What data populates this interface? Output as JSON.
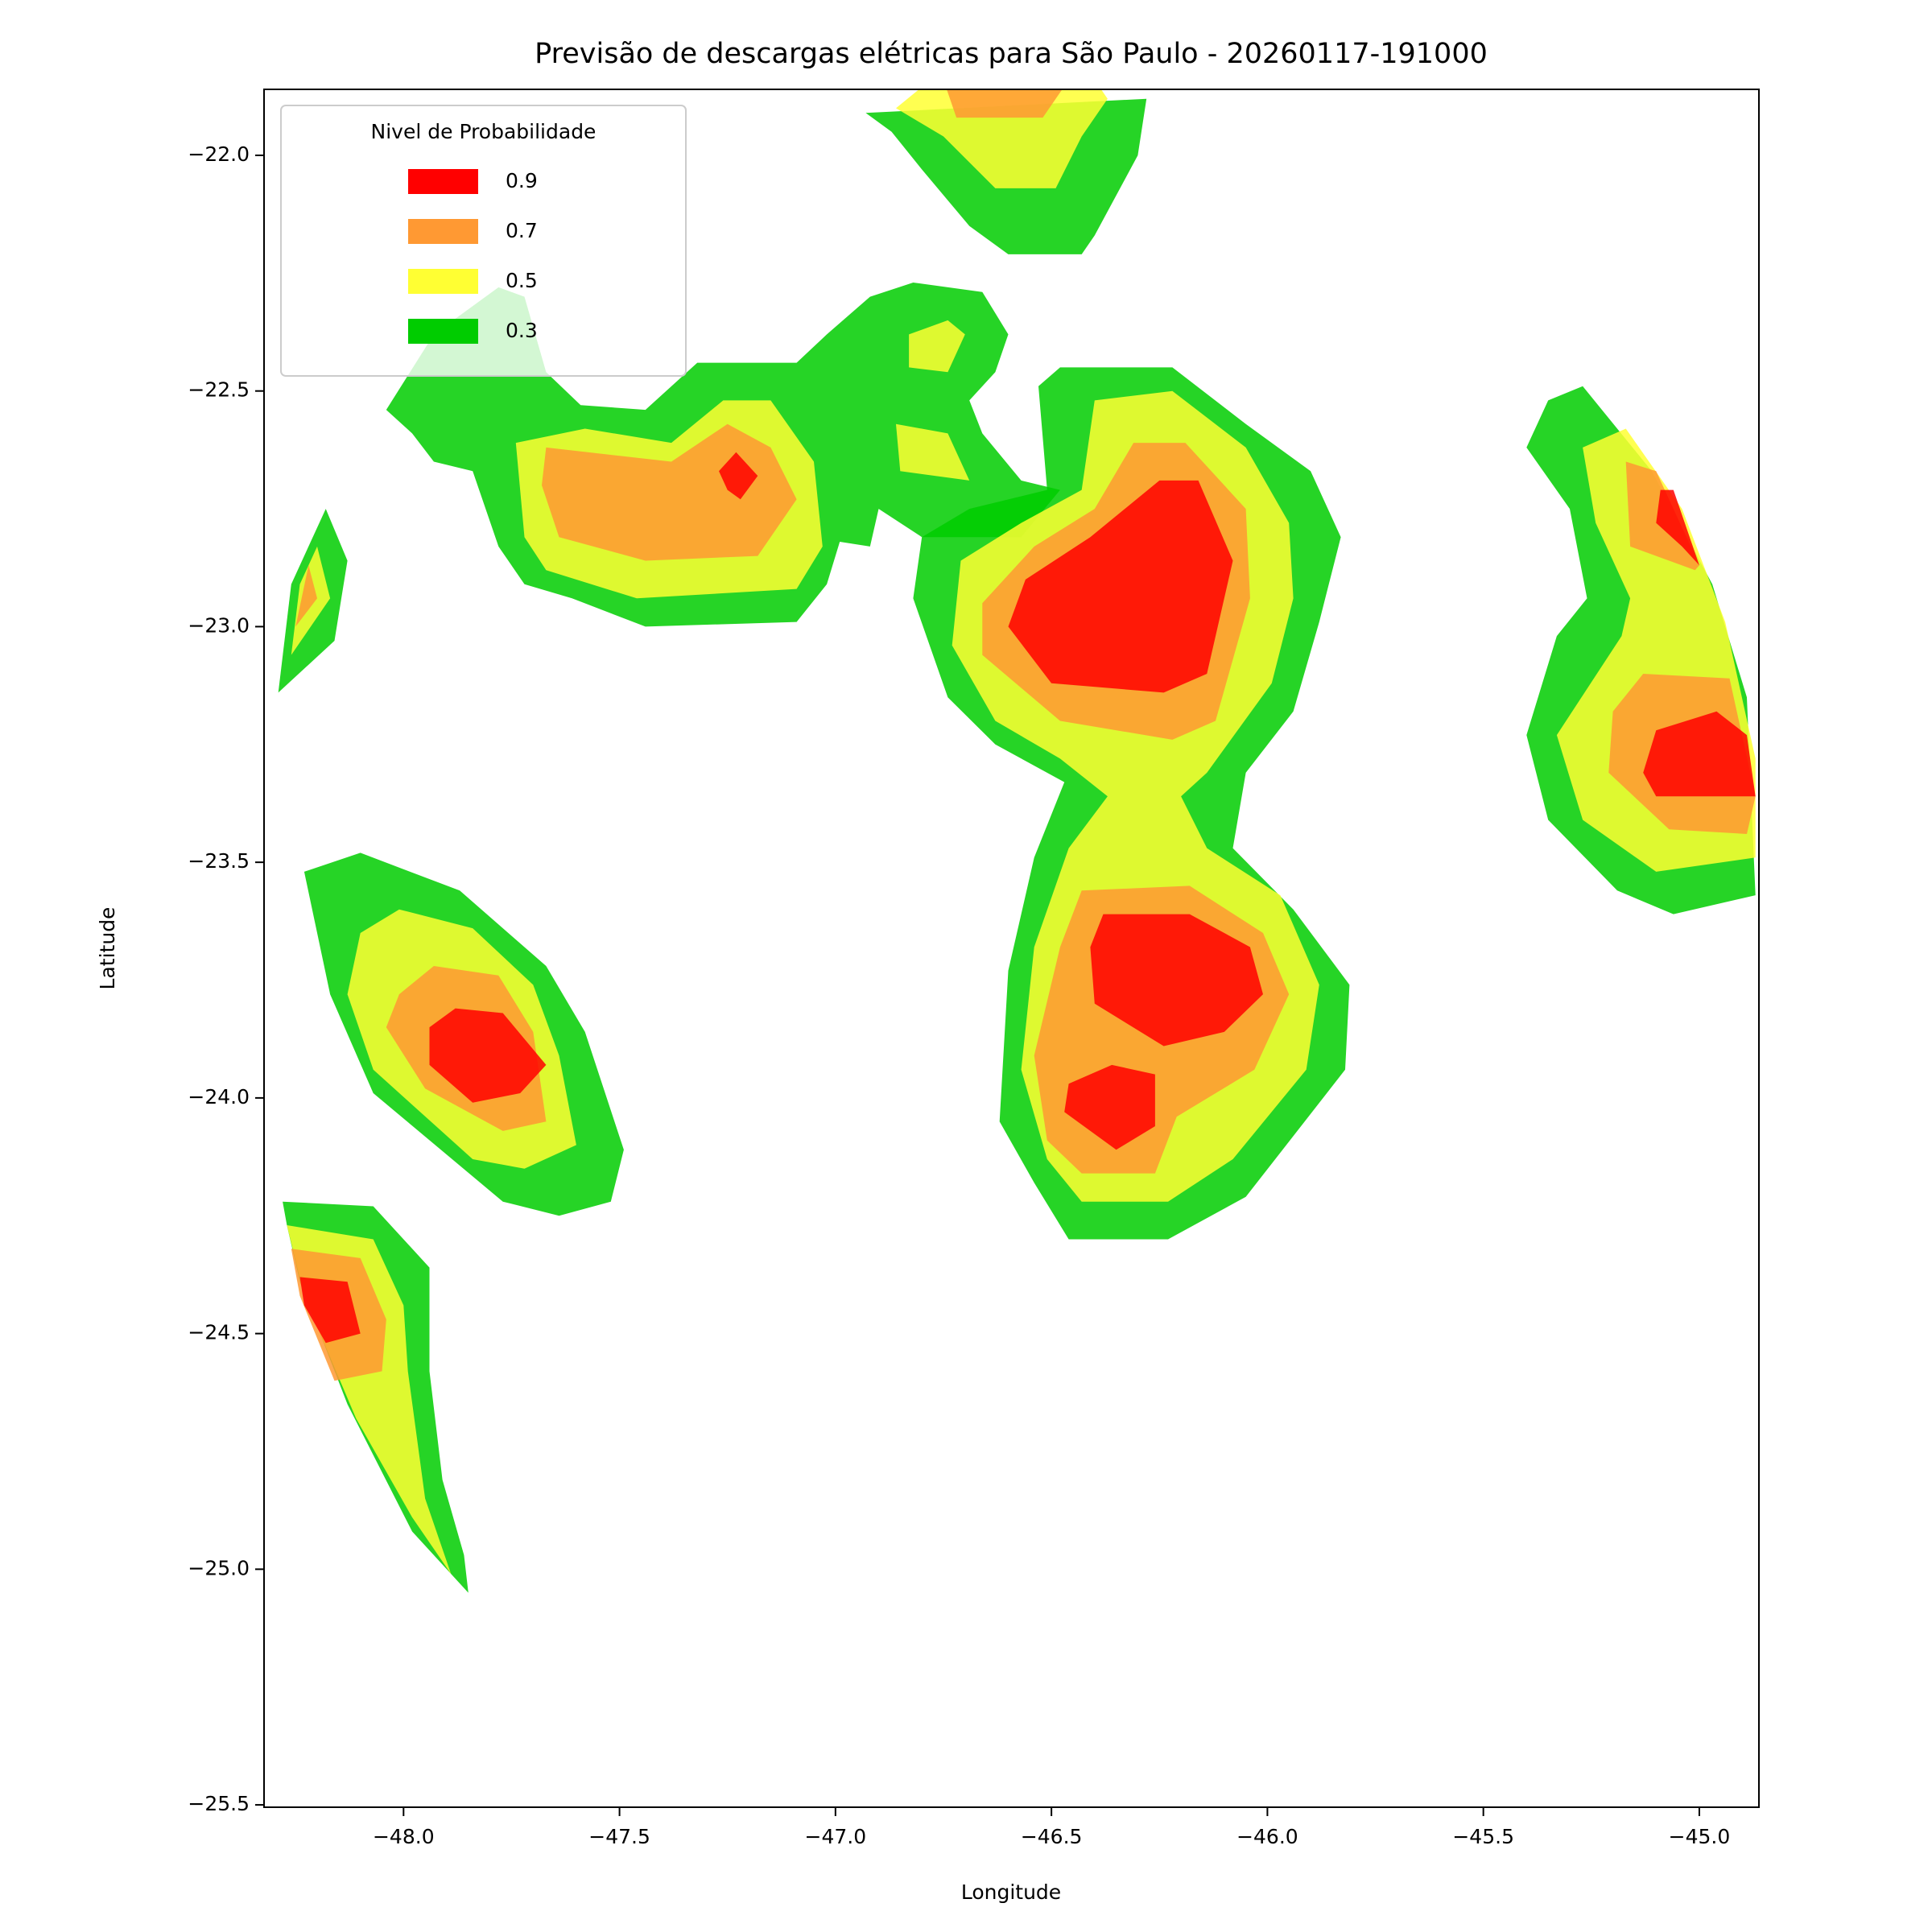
{
  "chart_data": {
    "type": "contourf",
    "title": "Previsão de descargas elétricas para São Paulo - 20260117-191000",
    "x_label": "Longitude",
    "y_label": "Latitude",
    "xlim": [
      -48.323,
      -44.862
    ],
    "ylim": [
      -25.505,
      -21.86
    ],
    "xticks": [
      {
        "value": -48.0,
        "label": "−48.0"
      },
      {
        "value": -47.5,
        "label": "−47.5"
      },
      {
        "value": -47.0,
        "label": "−47.0"
      },
      {
        "value": -46.5,
        "label": "−46.5"
      },
      {
        "value": -46.0,
        "label": "−46.0"
      },
      {
        "value": -45.5,
        "label": "−45.5"
      },
      {
        "value": -45.0,
        "label": "−45.0"
      }
    ],
    "yticks": [
      {
        "value": -22.0,
        "label": "−22.0"
      },
      {
        "value": -22.5,
        "label": "−22.5"
      },
      {
        "value": -23.0,
        "label": "−23.0"
      },
      {
        "value": -23.5,
        "label": "−23.5"
      },
      {
        "value": -24.0,
        "label": "−24.0"
      },
      {
        "value": -24.5,
        "label": "−24.5"
      },
      {
        "value": -25.0,
        "label": "−25.0"
      },
      {
        "value": -25.5,
        "label": "−25.5"
      }
    ],
    "alpha": 0.85,
    "legend": {
      "title": "Nivel de Probabilidade",
      "loc": "upper left"
    },
    "series": [
      {
        "name": "0.9",
        "color": "#ff0000",
        "polygons": [
          {
            "lon": [
              -47.27,
              -47.23,
              -47.18,
              -47.22,
              -47.25
            ],
            "lat": [
              -22.67,
              -22.63,
              -22.68,
              -22.73,
              -22.71
            ]
          },
          {
            "lon": [
              -46.25,
              -46.16,
              -46.08,
              -46.14,
              -46.24,
              -46.5,
              -46.6,
              -46.56,
              -46.41
            ],
            "lat": [
              -22.69,
              -22.69,
              -22.86,
              -23.1,
              -23.14,
              -23.12,
              -23.0,
              -22.9,
              -22.81
            ]
          },
          {
            "lon": [
              -46.38,
              -46.18,
              -46.04,
              -46.01,
              -46.1,
              -46.24,
              -46.4,
              -46.41
            ],
            "lat": [
              -23.61,
              -23.61,
              -23.68,
              -23.78,
              -23.86,
              -23.89,
              -23.8,
              -23.68
            ]
          },
          {
            "lon": [
              -46.36,
              -46.26,
              -46.26,
              -46.35,
              -46.47,
              -46.46
            ],
            "lat": [
              -23.93,
              -23.95,
              -24.06,
              -24.11,
              -24.03,
              -23.97
            ]
          },
          {
            "lon": [
              -47.94,
              -47.88,
              -47.77,
              -47.67,
              -47.73,
              -47.84,
              -47.94
            ],
            "lat": [
              -23.85,
              -23.81,
              -23.82,
              -23.93,
              -23.99,
              -24.01,
              -23.93
            ]
          },
          {
            "lon": [
              -48.24,
              -48.13,
              -48.1,
              -48.18,
              -48.23
            ],
            "lat": [
              -24.38,
              -24.39,
              -24.5,
              -24.52,
              -24.44
            ]
          },
          {
            "lon": [
              -45.09,
              -45.06,
              -45.0,
              -45.04,
              -45.1
            ],
            "lat": [
              -22.71,
              -22.71,
              -22.87,
              -22.83,
              -22.78
            ]
          },
          {
            "lon": [
              -45.1,
              -44.96,
              -44.89,
              -44.87,
              -45.1,
              -45.13
            ],
            "lat": [
              -23.22,
              -23.18,
              -23.23,
              -23.36,
              -23.36,
              -23.31
            ]
          }
        ]
      },
      {
        "name": "0.7",
        "color": "#ff9933",
        "polygons": [
          {
            "lon": [
              -46.75,
              -46.46,
              -46.52,
              -46.72
            ],
            "lat": [
              -21.84,
              -21.84,
              -21.92,
              -21.92
            ]
          },
          {
            "lon": [
              -47.67,
              -47.38,
              -47.25,
              -47.15,
              -47.09,
              -47.18,
              -47.44,
              -47.64,
              -47.68
            ],
            "lat": [
              -22.62,
              -22.65,
              -22.57,
              -22.62,
              -22.73,
              -22.85,
              -22.86,
              -22.81,
              -22.7
            ]
          },
          {
            "lon": [
              -46.31,
              -46.19,
              -46.05,
              -46.04,
              -46.12,
              -46.22,
              -46.48,
              -46.66,
              -46.66,
              -46.54,
              -46.4
            ],
            "lat": [
              -22.61,
              -22.61,
              -22.75,
              -22.94,
              -23.2,
              -23.24,
              -23.2,
              -23.06,
              -22.95,
              -22.83,
              -22.75
            ]
          },
          {
            "lon": [
              -46.43,
              -46.18,
              -46.01,
              -45.95,
              -46.03,
              -46.21,
              -46.26,
              -46.43,
              -46.51,
              -46.54,
              -46.48
            ],
            "lat": [
              -23.56,
              -23.55,
              -23.65,
              -23.78,
              -23.94,
              -24.04,
              -24.16,
              -24.16,
              -24.09,
              -23.91,
              -23.68
            ]
          },
          {
            "lon": [
              -48.01,
              -47.93,
              -47.78,
              -47.7,
              -47.67,
              -47.77,
              -47.95,
              -48.04
            ],
            "lat": [
              -23.78,
              -23.72,
              -23.74,
              -23.86,
              -24.05,
              -24.07,
              -23.98,
              -23.85
            ]
          },
          {
            "lon": [
              -48.22,
              -48.2,
              -48.25
            ],
            "lat": [
              -22.87,
              -22.94,
              -23.0
            ]
          },
          {
            "lon": [
              -48.26,
              -48.1,
              -48.04,
              -48.05,
              -48.16,
              -48.24
            ],
            "lat": [
              -24.32,
              -24.34,
              -24.47,
              -24.58,
              -24.6,
              -24.42
            ]
          },
          {
            "lon": [
              -45.17,
              -45.1,
              -45.0,
              -45.01,
              -45.16
            ],
            "lat": [
              -22.65,
              -22.67,
              -22.87,
              -22.88,
              -22.83
            ]
          },
          {
            "lon": [
              -45.13,
              -44.93,
              -44.87,
              -44.89,
              -45.07,
              -45.21,
              -45.2
            ],
            "lat": [
              -23.1,
              -23.11,
              -23.36,
              -23.44,
              -23.43,
              -23.31,
              -23.18
            ]
          }
        ]
      },
      {
        "name": "0.5",
        "color": "#ffff33",
        "polygons": [
          {
            "lon": [
              -46.86,
              -46.78,
              -46.4,
              -46.37,
              -46.43,
              -46.49,
              -46.63,
              -46.75
            ],
            "lat": [
              -21.9,
              -21.84,
              -21.84,
              -21.88,
              -21.96,
              -22.07,
              -22.07,
              -21.96
            ]
          },
          {
            "lon": [
              -47.74,
              -47.58,
              -47.38,
              -47.26,
              -47.15,
              -47.05,
              -47.03,
              -47.09,
              -47.46,
              -47.67,
              -47.72
            ],
            "lat": [
              -22.61,
              -22.58,
              -22.61,
              -22.52,
              -22.52,
              -22.65,
              -22.83,
              -22.92,
              -22.94,
              -22.88,
              -22.81
            ]
          },
          {
            "lon": [
              -46.83,
              -46.74,
              -46.7,
              -46.74,
              -46.83
            ],
            "lat": [
              -22.38,
              -22.35,
              -22.38,
              -22.46,
              -22.45
            ]
          },
          {
            "lon": [
              -46.86,
              -46.74,
              -46.69,
              -46.85
            ],
            "lat": [
              -22.57,
              -22.59,
              -22.69,
              -22.67
            ]
          },
          {
            "lon": [
              -46.4,
              -46.22,
              -46.05,
              -45.95,
              -45.94,
              -45.99,
              -46.14,
              -46.2,
              -46.14,
              -45.97,
              -45.88,
              -45.91,
              -46.08,
              -46.23,
              -46.43,
              -46.51,
              -46.57,
              -46.54,
              -46.46,
              -46.37,
              -46.48,
              -46.63,
              -46.73,
              -46.71,
              -46.57,
              -46.43
            ],
            "lat": [
              -22.52,
              -22.5,
              -22.62,
              -22.78,
              -22.94,
              -23.12,
              -23.31,
              -23.36,
              -23.47,
              -23.57,
              -23.76,
              -23.94,
              -24.13,
              -24.22,
              -24.22,
              -24.13,
              -23.94,
              -23.68,
              -23.47,
              -23.36,
              -23.28,
              -23.2,
              -23.04,
              -22.86,
              -22.78,
              -22.71
            ]
          },
          {
            "lon": [
              -48.1,
              -48.01,
              -47.84,
              -47.7,
              -47.64,
              -47.6,
              -47.72,
              -47.84,
              -48.07,
              -48.13
            ],
            "lat": [
              -23.65,
              -23.6,
              -23.64,
              -23.76,
              -23.91,
              -24.1,
              -24.15,
              -24.13,
              -23.94,
              -23.78
            ]
          },
          {
            "lon": [
              -48.2,
              -48.17,
              -48.26,
              -48.24
            ],
            "lat": [
              -22.83,
              -22.94,
              -23.06,
              -22.91
            ]
          },
          {
            "lon": [
              -48.27,
              -48.07,
              -48.0,
              -47.99,
              -47.95,
              -47.89,
              -47.98,
              -48.11,
              -48.23
            ],
            "lat": [
              -24.27,
              -24.3,
              -24.44,
              -24.58,
              -24.85,
              -25.01,
              -24.89,
              -24.68,
              -24.42
            ]
          },
          {
            "lon": [
              -45.27,
              -45.17,
              -45.04,
              -44.94,
              -44.87,
              -44.87,
              -45.1,
              -45.27,
              -45.33,
              -45.18,
              -45.16,
              -45.24
            ],
            "lat": [
              -22.62,
              -22.58,
              -22.75,
              -22.99,
              -23.28,
              -23.49,
              -23.52,
              -23.41,
              -23.23,
              -23.02,
              -22.94,
              -22.78
            ]
          }
        ]
      },
      {
        "name": "0.3",
        "color": "#00cc00",
        "polygons": [
          {
            "lon": [
              -46.93,
              -46.28,
              -46.3,
              -46.4,
              -46.43,
              -46.6,
              -46.69,
              -46.8,
              -46.87
            ],
            "lat": [
              -21.91,
              -21.88,
              -22.0,
              -22.17,
              -22.21,
              -22.21,
              -22.15,
              -22.03,
              -21.95
            ]
          },
          {
            "lon": [
              -48.04,
              -47.93,
              -47.78,
              -47.72,
              -47.67,
              -47.59,
              -47.44,
              -47.32,
              -47.09,
              -47.02,
              -46.92,
              -46.82,
              -46.66,
              -46.6,
              -46.63,
              -46.69,
              -46.66,
              -46.57,
              -46.48,
              -46.57,
              -46.8,
              -46.9,
              -46.92,
              -46.99,
              -47.02,
              -47.09,
              -47.44,
              -47.61,
              -47.72,
              -47.78,
              -47.84,
              -47.93,
              -47.98
            ],
            "lat": [
              -22.54,
              -22.38,
              -22.28,
              -22.3,
              -22.46,
              -22.53,
              -22.54,
              -22.44,
              -22.44,
              -22.38,
              -22.3,
              -22.27,
              -22.29,
              -22.38,
              -22.46,
              -22.52,
              -22.59,
              -22.69,
              -22.71,
              -22.81,
              -22.81,
              -22.75,
              -22.83,
              -22.82,
              -22.91,
              -22.99,
              -23.0,
              -22.94,
              -22.91,
              -22.83,
              -22.67,
              -22.65,
              -22.59
            ]
          },
          {
            "lon": [
              -46.53,
              -46.48,
              -46.22,
              -46.05,
              -45.9,
              -45.83,
              -45.88,
              -45.94,
              -46.05,
              -46.08,
              -45.94,
              -45.81,
              -45.82,
              -46.05,
              -46.23,
              -46.46,
              -46.54,
              -46.62,
              -46.6,
              -46.54,
              -46.47,
              -46.63,
              -46.74,
              -46.82,
              -46.8,
              -46.69,
              -46.51
            ],
            "lat": [
              -22.49,
              -22.45,
              -22.45,
              -22.57,
              -22.67,
              -22.81,
              -22.99,
              -23.18,
              -23.31,
              -23.47,
              -23.6,
              -23.76,
              -23.94,
              -24.21,
              -24.3,
              -24.3,
              -24.18,
              -24.05,
              -23.73,
              -23.49,
              -23.33,
              -23.25,
              -23.15,
              -22.94,
              -22.81,
              -22.75,
              -22.71
            ]
          },
          {
            "lon": [
              -48.23,
              -48.1,
              -47.87,
              -47.67,
              -47.58,
              -47.49,
              -47.52,
              -47.64,
              -47.77,
              -48.07,
              -48.17
            ],
            "lat": [
              -23.52,
              -23.48,
              -23.56,
              -23.72,
              -23.86,
              -24.11,
              -24.22,
              -24.25,
              -24.22,
              -23.99,
              -23.78
            ]
          },
          {
            "lon": [
              -48.18,
              -48.13,
              -48.16,
              -48.29,
              -48.26
            ],
            "lat": [
              -22.75,
              -22.86,
              -23.03,
              -23.14,
              -22.91
            ]
          },
          {
            "lon": [
              -48.28,
              -48.07,
              -47.94,
              -47.94,
              -47.91,
              -47.86,
              -47.85,
              -47.98,
              -48.13,
              -48.24,
              -48.27
            ],
            "lat": [
              -24.22,
              -24.23,
              -24.36,
              -24.58,
              -24.81,
              -24.97,
              -25.05,
              -24.92,
              -24.65,
              -24.39,
              -24.27
            ]
          },
          {
            "lon": [
              -45.35,
              -45.27,
              -45.11,
              -44.97,
              -44.89,
              -44.87,
              -45.06,
              -45.19,
              -45.35,
              -45.4,
              -45.33,
              -45.26,
              -45.3,
              -45.4
            ],
            "lat": [
              -22.52,
              -22.49,
              -22.67,
              -22.91,
              -23.15,
              -23.57,
              -23.61,
              -23.56,
              -23.41,
              -23.23,
              -23.02,
              -22.94,
              -22.75,
              -22.62
            ]
          }
        ]
      }
    ]
  }
}
